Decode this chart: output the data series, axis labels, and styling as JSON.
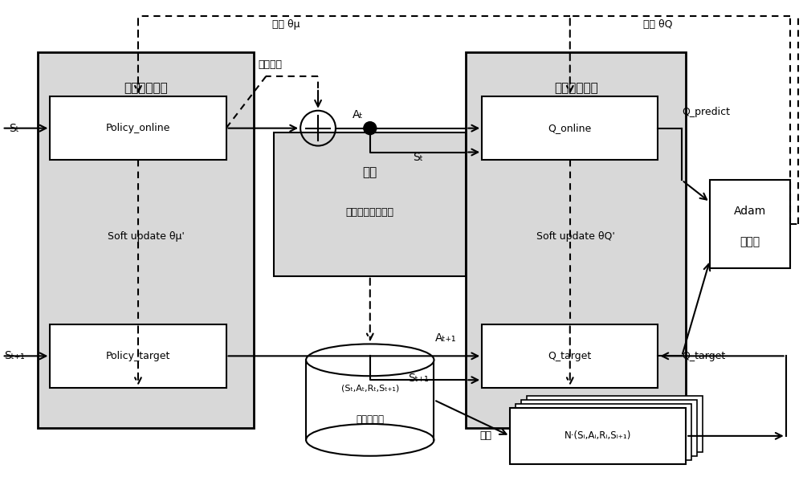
{
  "bg_color": "#ffffff",
  "box_fill": "#d8d8d8",
  "white": "#ffffff",
  "black": "#000000",
  "policy_network_label": "策略神经网络",
  "critic_network_label": "评价神经网络",
  "env_label": "环境",
  "env_sublabel": "全波电磁仿真软件",
  "policy_online_label": "Policy_online",
  "policy_target_label": "Policy_target",
  "q_online_label": "Q_online",
  "q_target_label": "Q_target",
  "adam_label1": "Adam",
  "adam_label2": "优化器",
  "replay_label1": "(Sₜ,Aₜ,Rₜ,Sₜ₊₁)",
  "replay_label2": "经验回放池",
  "sample_label": "N·(Sᵢ,Aᵢ,Rᵢ,Sᵢ₊₁)",
  "soft_update_mu": "Soft update θμ'",
  "soft_update_q": "Soft update θQ'",
  "update_mu": "更新 θμ",
  "update_Q": "更新 θQ",
  "random_noise": "随机噪声",
  "q_predict": "Q_predict",
  "q_target_out": "Q_target",
  "sample_text": "样本",
  "St": "Sₜ",
  "St1": "Sₜ₊₁",
  "At": "Aₜ",
  "At1": "Aₜ₊₁",
  "St_mid": "Sₜ",
  "St1_mid": "Sₜ₊₁"
}
